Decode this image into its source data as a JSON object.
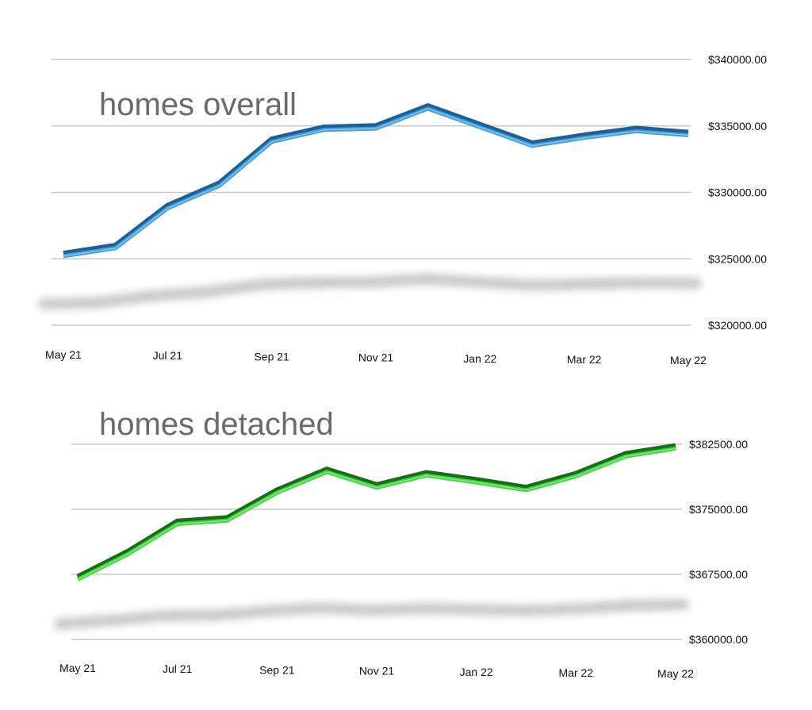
{
  "chart_data": [
    {
      "type": "line",
      "title": "homes overall",
      "x": [
        "May 21",
        "Jun 21",
        "Jul 21",
        "Aug 21",
        "Sep 21",
        "Oct 21",
        "Nov 21",
        "Dec 21",
        "Jan 22",
        "Feb 22",
        "Mar 22",
        "Apr 22",
        "May 22"
      ],
      "x_tick_labels": [
        "May 21",
        "Jul 21",
        "Sep 21",
        "Nov 21",
        "Jan 22",
        "Mar 22",
        "May 22"
      ],
      "series": [
        {
          "values": [
            325200,
            325800,
            328800,
            330500,
            333800,
            334700,
            334800,
            336300,
            334900,
            333500,
            334100,
            334600,
            334300
          ]
        }
      ],
      "ylim": [
        320000,
        340000
      ],
      "y_ticks": [
        320000,
        325000,
        330000,
        335000,
        340000
      ],
      "y_tick_labels": [
        "$320000.00",
        "$325000.00",
        "$330000.00",
        "$335000.00",
        "$340000.00"
      ],
      "y_axis_side": "right",
      "grid": true,
      "line_color": "#3d9ee0",
      "line_edge_color": "#1f5f92"
    },
    {
      "type": "line",
      "title": "homes detached",
      "x": [
        "May 21",
        "Jun 21",
        "Jul 21",
        "Aug 21",
        "Sep 21",
        "Oct 21",
        "Nov 21",
        "Dec 21",
        "Jan 22",
        "Feb 22",
        "Mar 22",
        "Apr 22",
        "May 22"
      ],
      "x_tick_labels": [
        "May 21",
        "Jul 21",
        "Sep 21",
        "Nov 21",
        "Jan 22",
        "Mar 22",
        "May 22"
      ],
      "series": [
        {
          "values": [
            366900,
            369800,
            373300,
            373700,
            376900,
            379300,
            377500,
            378900,
            378100,
            377200,
            378800,
            381100,
            382000
          ]
        }
      ],
      "ylim": [
        360000,
        382500
      ],
      "y_ticks": [
        360000,
        367500,
        375000,
        382500
      ],
      "y_tick_labels": [
        "$360000.00",
        "$367500.00",
        "$375000.00",
        "$382500.00"
      ],
      "y_axis_side": "right",
      "grid": true,
      "line_color": "#3cd83a",
      "line_edge_color": "#1e6a1d"
    }
  ]
}
